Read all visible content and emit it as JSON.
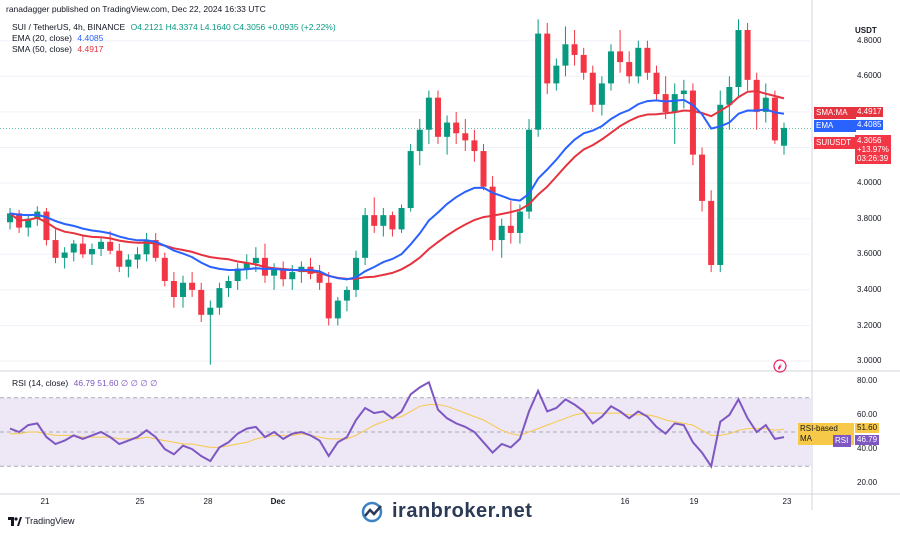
{
  "header": {
    "published": "ranadagger published on TradingView.com, Dec 22, 2024 16:33 UTC",
    "symbol": "SUI / TetherUS, 4h, BINANCE",
    "ohlc": "O4.2121  H4.3374  L4.1640  C4.3056  +0.0935 (+2.22%)",
    "ema_label": "EMA (20, close)",
    "ema_value": "4.4085",
    "sma_label": "SMA (50, close)",
    "sma_value": "4.4917",
    "rsi_label": "RSI (14, close)",
    "rsi_values": "46.79  51.60  ∅  ∅  ∅  ∅"
  },
  "price_axis": {
    "unit": "USDT",
    "ticks": [
      "4.8000",
      "4.6000",
      "4.4000",
      "4.2000",
      "4.0000",
      "3.8000",
      "3.6000",
      "3.4000",
      "3.2000",
      "3.0000"
    ]
  },
  "badges": {
    "sma": "SMA:MA",
    "sma_value": "4.4917",
    "ema": "EMA",
    "ema_value": "4.4085",
    "symbol": "SUIUSDT",
    "price": "4.3056",
    "change": "+13.97%",
    "countdown": "03:26:39"
  },
  "rsi_axis": {
    "ticks": [
      "80.00",
      "60.00",
      "40.00",
      "20.00"
    ],
    "ma_label": "RSI-based MA",
    "ma_value": "51.60",
    "rsi_label": "RSI",
    "rsi_value": "46.79"
  },
  "x_axis": {
    "ticks": [
      "21",
      "25",
      "28",
      "Dec",
      "16",
      "19",
      "23"
    ]
  },
  "watermark": "iranbroker.net",
  "footer_logo": "TradingView",
  "colors": {
    "up": "#089981",
    "down": "#f23645",
    "ema": "#2962ff",
    "sma": "#e5343f",
    "rsi": "#7e57c2",
    "rsi_ma": "#f7c948",
    "band": "#ede7f6"
  },
  "chart_data": {
    "type": "candlestick",
    "timeframe": "4h",
    "price_range": [
      2.95,
      4.95
    ],
    "rsi_range": [
      15,
      85
    ],
    "candles": [
      [
        3.78,
        3.86,
        3.74,
        3.83
      ],
      [
        3.83,
        3.85,
        3.72,
        3.75
      ],
      [
        3.75,
        3.82,
        3.7,
        3.8
      ],
      [
        3.8,
        3.87,
        3.76,
        3.84
      ],
      [
        3.84,
        3.86,
        3.65,
        3.68
      ],
      [
        3.68,
        3.74,
        3.55,
        3.58
      ],
      [
        3.58,
        3.64,
        3.52,
        3.61
      ],
      [
        3.61,
        3.68,
        3.56,
        3.66
      ],
      [
        3.66,
        3.7,
        3.58,
        3.6
      ],
      [
        3.6,
        3.66,
        3.54,
        3.63
      ],
      [
        3.63,
        3.69,
        3.59,
        3.67
      ],
      [
        3.67,
        3.73,
        3.6,
        3.62
      ],
      [
        3.62,
        3.66,
        3.5,
        3.53
      ],
      [
        3.53,
        3.6,
        3.47,
        3.57
      ],
      [
        3.57,
        3.64,
        3.52,
        3.6
      ],
      [
        3.6,
        3.72,
        3.56,
        3.68
      ],
      [
        3.68,
        3.72,
        3.56,
        3.58
      ],
      [
        3.58,
        3.61,
        3.42,
        3.45
      ],
      [
        3.45,
        3.5,
        3.3,
        3.36
      ],
      [
        3.36,
        3.48,
        3.3,
        3.44
      ],
      [
        3.44,
        3.5,
        3.36,
        3.4
      ],
      [
        3.4,
        3.44,
        3.22,
        3.26
      ],
      [
        3.26,
        3.34,
        2.98,
        3.3
      ],
      [
        3.3,
        3.44,
        3.26,
        3.41
      ],
      [
        3.41,
        3.48,
        3.36,
        3.45
      ],
      [
        3.45,
        3.55,
        3.4,
        3.52
      ],
      [
        3.52,
        3.6,
        3.46,
        3.55
      ],
      [
        3.55,
        3.64,
        3.5,
        3.58
      ],
      [
        3.58,
        3.66,
        3.44,
        3.48
      ],
      [
        3.48,
        3.55,
        3.4,
        3.52
      ],
      [
        3.52,
        3.56,
        3.42,
        3.46
      ],
      [
        3.46,
        3.54,
        3.4,
        3.5
      ],
      [
        3.5,
        3.56,
        3.44,
        3.53
      ],
      [
        3.53,
        3.58,
        3.46,
        3.49
      ],
      [
        3.49,
        3.54,
        3.4,
        3.44
      ],
      [
        3.44,
        3.5,
        3.2,
        3.24
      ],
      [
        3.24,
        3.36,
        3.2,
        3.34
      ],
      [
        3.34,
        3.42,
        3.28,
        3.4
      ],
      [
        3.4,
        3.62,
        3.36,
        3.58
      ],
      [
        3.58,
        3.86,
        3.54,
        3.82
      ],
      [
        3.82,
        3.92,
        3.72,
        3.76
      ],
      [
        3.76,
        3.86,
        3.7,
        3.82
      ],
      [
        3.82,
        3.84,
        3.7,
        3.74
      ],
      [
        3.74,
        3.88,
        3.72,
        3.86
      ],
      [
        3.86,
        4.22,
        3.84,
        4.18
      ],
      [
        4.18,
        4.36,
        4.1,
        4.3
      ],
      [
        4.3,
        4.52,
        4.22,
        4.48
      ],
      [
        4.48,
        4.52,
        4.22,
        4.26
      ],
      [
        4.26,
        4.38,
        4.16,
        4.34
      ],
      [
        4.34,
        4.4,
        4.22,
        4.28
      ],
      [
        4.28,
        4.36,
        4.18,
        4.24
      ],
      [
        4.24,
        4.3,
        4.12,
        4.18
      ],
      [
        4.18,
        4.22,
        3.96,
        3.98
      ],
      [
        3.98,
        4.04,
        3.62,
        3.68
      ],
      [
        3.68,
        3.8,
        3.58,
        3.76
      ],
      [
        3.76,
        3.9,
        3.66,
        3.72
      ],
      [
        3.72,
        3.88,
        3.66,
        3.84
      ],
      [
        3.84,
        4.36,
        3.8,
        4.3
      ],
      [
        4.3,
        4.92,
        4.26,
        4.84
      ],
      [
        4.84,
        4.9,
        4.5,
        4.56
      ],
      [
        4.56,
        4.7,
        4.52,
        4.66
      ],
      [
        4.66,
        4.88,
        4.6,
        4.78
      ],
      [
        4.78,
        4.86,
        4.66,
        4.72
      ],
      [
        4.72,
        4.76,
        4.58,
        4.62
      ],
      [
        4.62,
        4.66,
        4.4,
        4.44
      ],
      [
        4.44,
        4.6,
        4.38,
        4.56
      ],
      [
        4.56,
        4.78,
        4.52,
        4.74
      ],
      [
        4.74,
        4.86,
        4.62,
        4.68
      ],
      [
        4.68,
        4.74,
        4.56,
        4.6
      ],
      [
        4.6,
        4.8,
        4.56,
        4.76
      ],
      [
        4.76,
        4.8,
        4.58,
        4.62
      ],
      [
        4.62,
        4.66,
        4.46,
        4.5
      ],
      [
        4.5,
        4.6,
        4.36,
        4.4
      ],
      [
        4.4,
        4.56,
        4.22,
        4.5
      ],
      [
        4.5,
        4.58,
        4.42,
        4.52
      ],
      [
        4.52,
        4.56,
        4.1,
        4.16
      ],
      [
        4.16,
        4.2,
        3.84,
        3.9
      ],
      [
        3.9,
        3.96,
        3.5,
        3.54
      ],
      [
        3.54,
        4.52,
        3.5,
        4.44
      ],
      [
        4.44,
        4.6,
        4.3,
        4.54
      ],
      [
        4.54,
        4.92,
        4.48,
        4.86
      ],
      [
        4.86,
        4.9,
        4.52,
        4.58
      ],
      [
        4.58,
        4.62,
        4.3,
        4.4
      ],
      [
        4.4,
        4.56,
        4.34,
        4.48
      ],
      [
        4.48,
        4.52,
        4.22,
        4.24
      ],
      [
        4.21,
        4.34,
        4.16,
        4.31
      ]
    ],
    "rsi": [
      52,
      50,
      54,
      55,
      47,
      43,
      45,
      48,
      46,
      48,
      50,
      47,
      43,
      45,
      47,
      51,
      47,
      40,
      37,
      42,
      40,
      36,
      33,
      41,
      44,
      49,
      52,
      53,
      47,
      50,
      46,
      49,
      50,
      48,
      45,
      36,
      44,
      47,
      57,
      64,
      61,
      62,
      58,
      62,
      72,
      76,
      79,
      63,
      58,
      55,
      53,
      50,
      44,
      38,
      43,
      41,
      46,
      62,
      74,
      62,
      64,
      69,
      66,
      62,
      55,
      59,
      65,
      62,
      58,
      62,
      59,
      53,
      49,
      55,
      54,
      44,
      38,
      30,
      56,
      60,
      69,
      58,
      50,
      54,
      46,
      47
    ],
    "rsi_ma": [
      49,
      49,
      50,
      50,
      49,
      48,
      48,
      48,
      47,
      47,
      47,
      47,
      46,
      46,
      46,
      47,
      46,
      45,
      44,
      43,
      43,
      42,
      41,
      41,
      42,
      43,
      44,
      46,
      47,
      48,
      48,
      48,
      49,
      48,
      47,
      46,
      46,
      46,
      48,
      51,
      54,
      56,
      58,
      59,
      62,
      65,
      66,
      66,
      65,
      63,
      61,
      59,
      57,
      54,
      51,
      49,
      48,
      50,
      52,
      54,
      56,
      58,
      60,
      61,
      61,
      61,
      61,
      61,
      60,
      60,
      60,
      59,
      57,
      56,
      55,
      54,
      51,
      48,
      48,
      49,
      51,
      52,
      52,
      52,
      51,
      51.6
    ],
    "ema20_last": 4.4085,
    "sma50_last": 4.4917,
    "last_close": 4.3056
  }
}
